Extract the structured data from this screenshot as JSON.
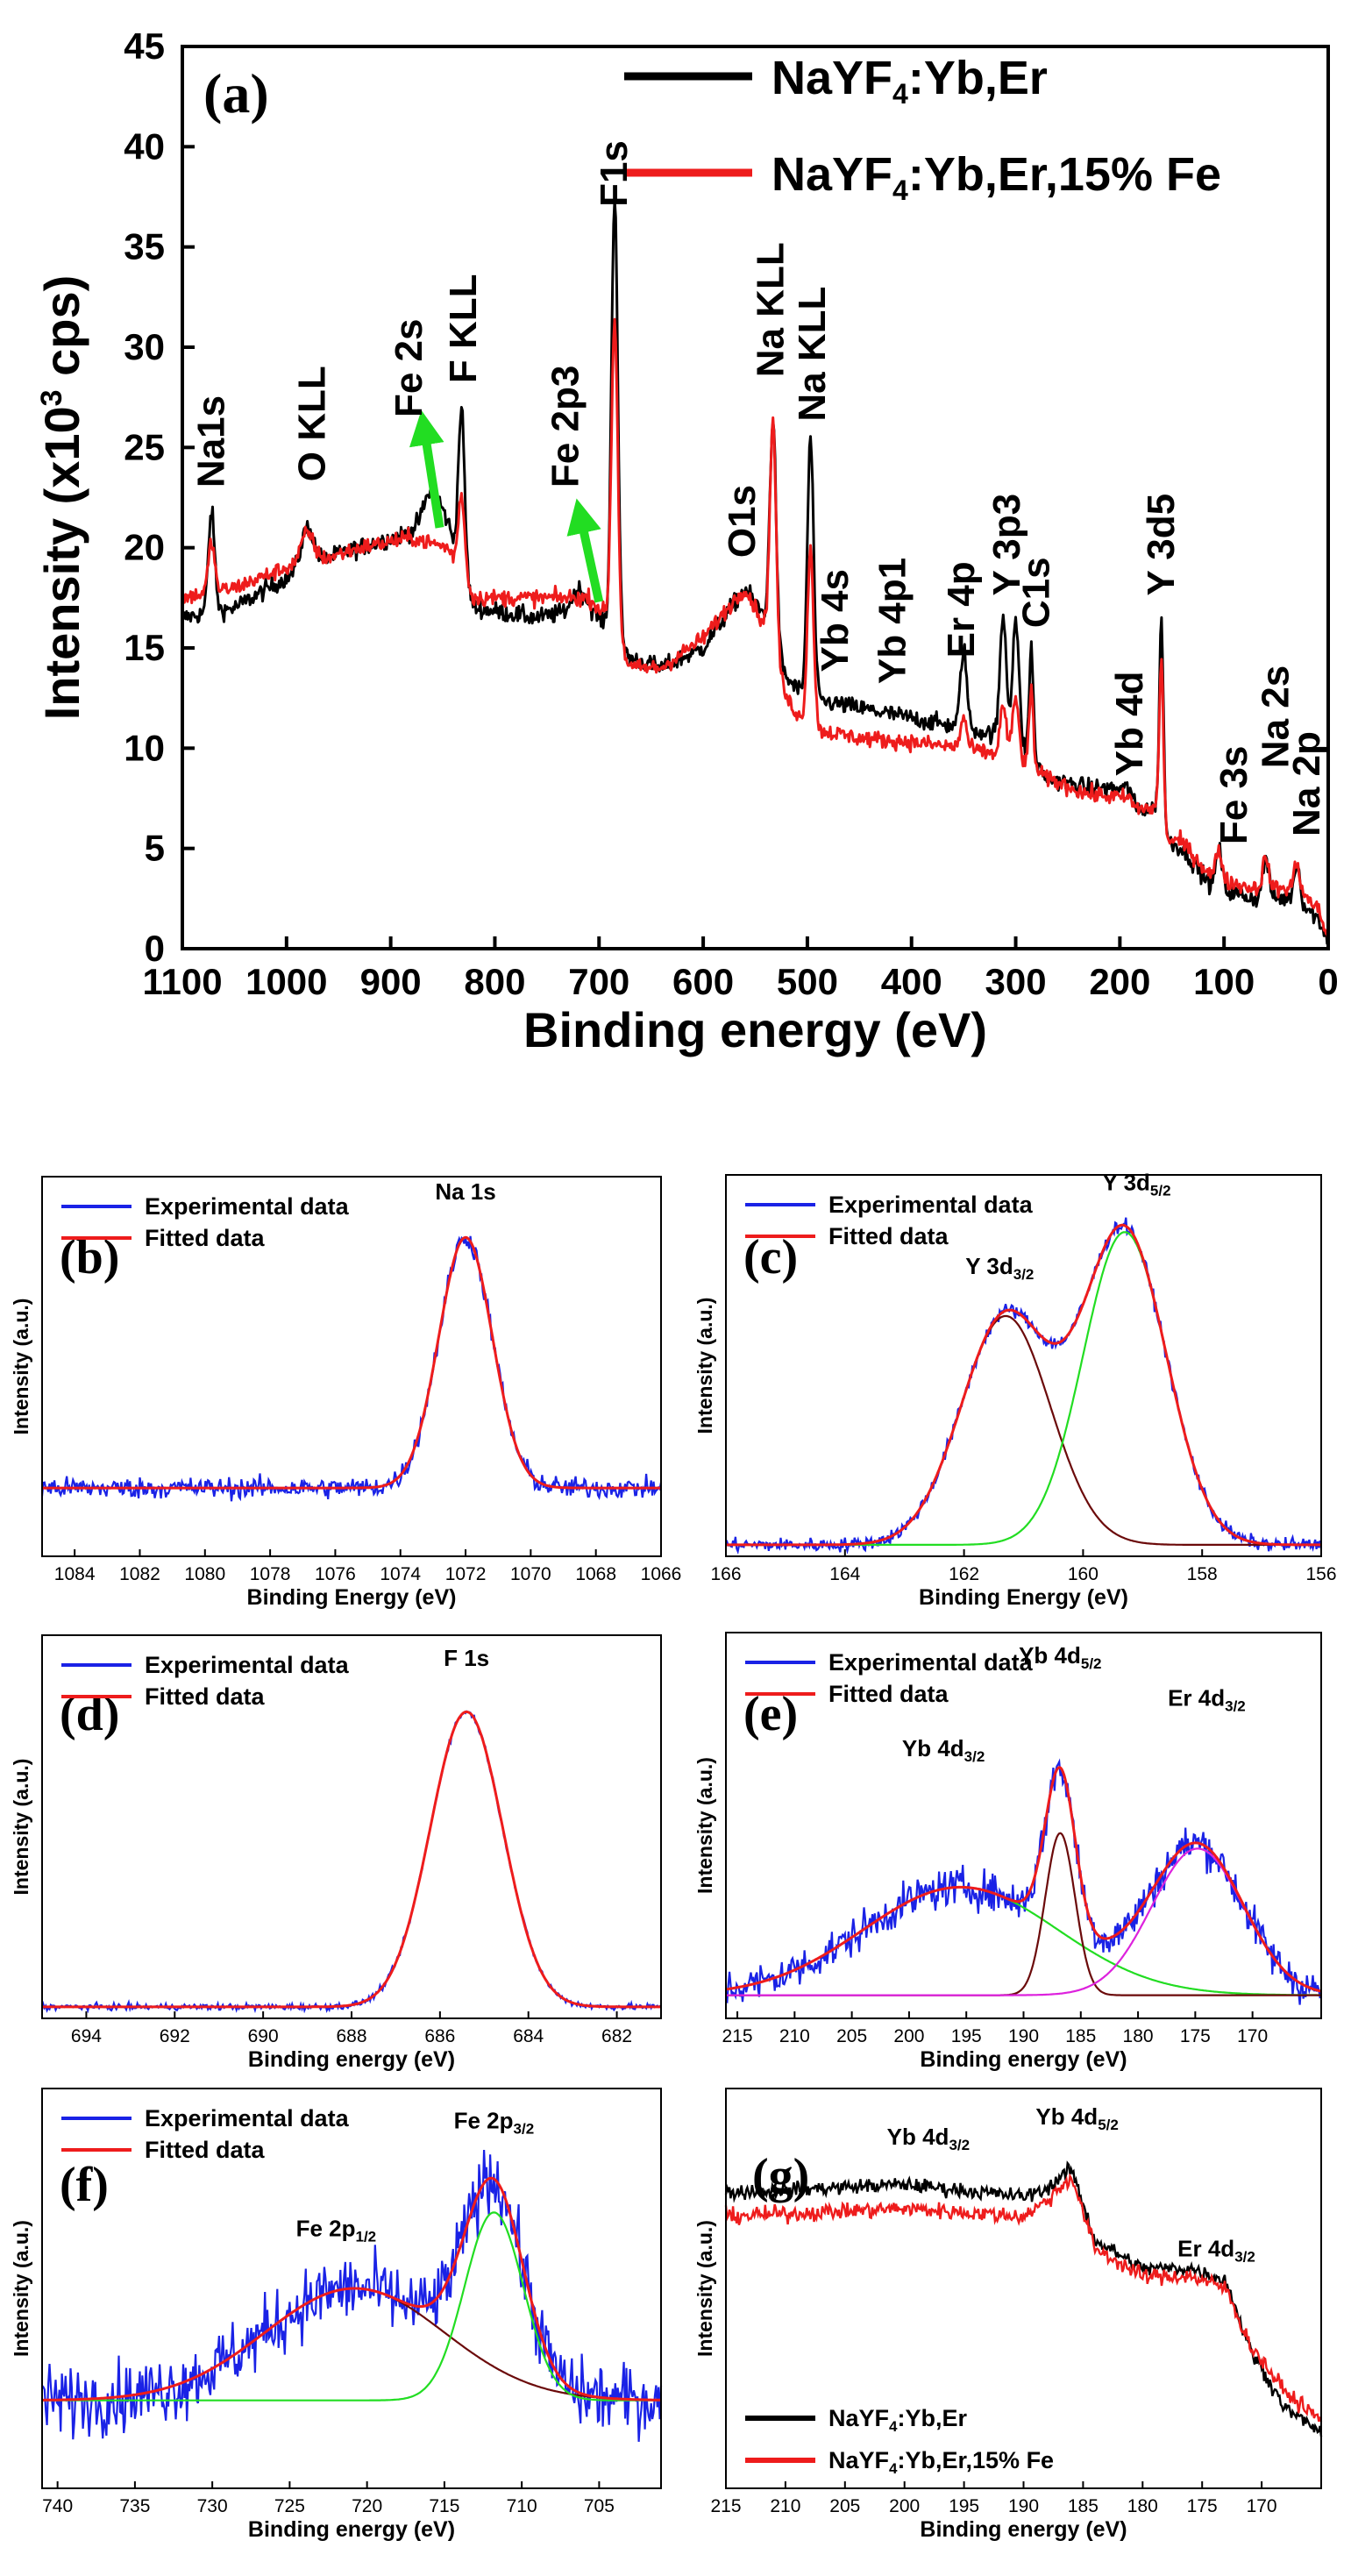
{
  "colors": {
    "black": "#000000",
    "red": "#ee1c1c",
    "blue": "#1a22e6",
    "green": "#22dd22",
    "brown": "#6b0a0a",
    "magenta": "#dd22dd",
    "arrow": "#22dd22"
  },
  "chart_data": [
    {
      "id": "a",
      "type": "line",
      "panel_label": "(a)",
      "xlabel": "Binding energy (eV)",
      "ylabel": "Intensity (x10³ cps)",
      "ylabel_main": "Intensity (x10",
      "ylabel_sup": "3",
      "ylabel_tail": " cps)",
      "xlim": [
        1100,
        0
      ],
      "ylim": [
        0,
        45
      ],
      "xticks": [
        1100,
        1000,
        900,
        800,
        700,
        600,
        500,
        400,
        300,
        200,
        100,
        0
      ],
      "yticks": [
        0,
        5,
        10,
        15,
        20,
        25,
        30,
        35,
        40,
        45
      ],
      "legend": {
        "position": "top-right",
        "entries": [
          {
            "color": "black",
            "pre": "NaYF",
            "sub": "4",
            "post": ":Yb,Er"
          },
          {
            "color": "red",
            "pre": "NaYF",
            "sub": "4",
            "post": ":Yb,Er,15% Fe"
          }
        ]
      },
      "series": [
        {
          "name": "NaYF4:Yb,Er",
          "color": "black",
          "background": [
            [
              1100,
              16.5
            ],
            [
              1050,
              17.0
            ],
            [
              1000,
              18.5
            ],
            [
              960,
              19.5
            ],
            [
              930,
              20.0
            ],
            [
              880,
              20.8
            ],
            [
              845,
              21.0
            ],
            [
              820,
              17.0
            ],
            [
              760,
              16.5
            ],
            [
              710,
              17.0
            ],
            [
              690,
              16.0
            ],
            [
              670,
              14.5
            ],
            [
              640,
              14.0
            ],
            [
              600,
              15.0
            ],
            [
              560,
              18.0
            ],
            [
              540,
              16.5
            ],
            [
              520,
              13.5
            ],
            [
              500,
              12.5
            ],
            [
              450,
              12.0
            ],
            [
              400,
              11.5
            ],
            [
              350,
              11.0
            ],
            [
              300,
              10.5
            ],
            [
              270,
              8.5
            ],
            [
              230,
              8.0
            ],
            [
              190,
              8.0
            ],
            [
              185,
              7.0
            ],
            [
              162,
              7.0
            ],
            [
              158,
              5.5
            ],
            [
              140,
              5.0
            ],
            [
              110,
              3.0
            ],
            [
              70,
              2.5
            ],
            [
              40,
              2.5
            ],
            [
              20,
              2.0
            ],
            [
              10,
              1.5
            ],
            [
              0,
              0.5
            ]
          ],
          "peaks": [
            [
              1072,
              5.0,
              3
            ],
            [
              980,
              2.0,
              6
            ],
            [
              860,
              2.0,
              8
            ],
            [
              832,
              8.0,
              3
            ],
            [
              720,
              1.0,
              6
            ],
            [
              685,
              22.0,
              3
            ],
            [
              533,
              11.0,
              3
            ],
            [
              497,
              13.0,
              3
            ],
            [
              350,
              4.0,
              3
            ],
            [
              312,
              6.0,
              3
            ],
            [
              300,
              6.0,
              3
            ],
            [
              285,
              5.5,
              2
            ],
            [
              160,
              10.0,
              2
            ],
            [
              105,
              2.0,
              3
            ],
            [
              60,
              2.0,
              3
            ],
            [
              30,
              2.0,
              3
            ]
          ],
          "noise": 0.45
        },
        {
          "name": "NaYF4:Yb,Er,15% Fe",
          "color": "red",
          "background": [
            [
              1100,
              17.5
            ],
            [
              1050,
              18.0
            ],
            [
              1000,
              19.0
            ],
            [
              960,
              19.5
            ],
            [
              930,
              20.0
            ],
            [
              880,
              20.5
            ],
            [
              845,
              20.0
            ],
            [
              820,
              17.5
            ],
            [
              760,
              17.5
            ],
            [
              710,
              17.5
            ],
            [
              690,
              16.5
            ],
            [
              670,
              14.0
            ],
            [
              640,
              14.0
            ],
            [
              600,
              15.5
            ],
            [
              560,
              18.0
            ],
            [
              540,
              16.0
            ],
            [
              520,
              12.5
            ],
            [
              500,
              11.0
            ],
            [
              450,
              10.5
            ],
            [
              400,
              10.3
            ],
            [
              350,
              10.0
            ],
            [
              300,
              9.5
            ],
            [
              270,
              8.5
            ],
            [
              230,
              7.7
            ],
            [
              190,
              7.5
            ],
            [
              185,
              7.0
            ],
            [
              162,
              7.0
            ],
            [
              158,
              5.5
            ],
            [
              140,
              5.3
            ],
            [
              110,
              3.5
            ],
            [
              70,
              3.0
            ],
            [
              40,
              3.0
            ],
            [
              20,
              2.5
            ],
            [
              10,
              2.0
            ],
            [
              0,
              0.5
            ]
          ],
          "peaks": [
            [
              1072,
              2.5,
              3
            ],
            [
              980,
              1.5,
              6
            ],
            [
              832,
              4.0,
              3
            ],
            [
              685,
              15.5,
              3
            ],
            [
              533,
              11.5,
              3
            ],
            [
              497,
              9.0,
              3
            ],
            [
              350,
              1.5,
              3
            ],
            [
              312,
              2.5,
              3
            ],
            [
              300,
              3.0,
              3
            ],
            [
              285,
              4.0,
              2
            ],
            [
              160,
              8.0,
              2
            ],
            [
              105,
              1.5,
              3
            ],
            [
              60,
              1.5,
              3
            ],
            [
              30,
              1.5,
              3
            ]
          ],
          "noise": 0.4
        }
      ],
      "annotations": [
        {
          "text": "Na1s",
          "x": 1072,
          "y": 23
        },
        {
          "text": "O KLL",
          "x": 975,
          "y": 23.3
        },
        {
          "text": "Fe 2s",
          "x": 882,
          "y": 26.5
        },
        {
          "text": "F KLL",
          "x": 830,
          "y": 28.2
        },
        {
          "text": "Fe 2p3",
          "x": 732,
          "y": 23
        },
        {
          "text": "F1s",
          "x": 685,
          "y": 37
        },
        {
          "text": "O1s",
          "x": 562,
          "y": 19.5
        },
        {
          "text": "Na KLL",
          "x": 535,
          "y": 28.5
        },
        {
          "text": "Na KLL",
          "x": 495,
          "y": 26.3
        },
        {
          "text": "Yb 4s",
          "x": 473,
          "y": 13.8
        },
        {
          "text": "Yb 4p1",
          "x": 418,
          "y": 13.2
        },
        {
          "text": "Er 4p",
          "x": 352,
          "y": 14.5
        },
        {
          "text": "Y 3p3",
          "x": 308,
          "y": 17.6
        },
        {
          "text": "C1s",
          "x": 280,
          "y": 16.0
        },
        {
          "text": "Yb 4d",
          "x": 190,
          "y": 8.6
        },
        {
          "text": "Y 3d5",
          "x": 160,
          "y": 17.6
        },
        {
          "text": "Fe 3s",
          "x": 90,
          "y": 5.2
        },
        {
          "text": "Na 2s",
          "x": 50,
          "y": 9.0
        },
        {
          "text": "Na 2p",
          "x": 20,
          "y": 5.6
        }
      ],
      "arrows": [
        {
          "from": [
            853,
            21
          ],
          "to": [
            868,
            26
          ]
        },
        {
          "from": [
            700,
            17.3
          ],
          "to": [
            718,
            21.6
          ]
        }
      ]
    },
    {
      "id": "b",
      "type": "line",
      "panel_label": "(b)",
      "xlabel": "Binding Energy (eV)",
      "ylabel": "Intensity (a.u.)",
      "xlim": [
        1085,
        1066
      ],
      "ylim": [
        0,
        1
      ],
      "xticks": [
        1084,
        1082,
        1080,
        1078,
        1076,
        1074,
        1072,
        1070,
        1068,
        1066
      ],
      "legend": {
        "position": "top-left",
        "entries": [
          {
            "color": "blue",
            "text": "Experimental data"
          },
          {
            "color": "red",
            "text": "Fitted data"
          }
        ]
      },
      "fit": {
        "baseline": 0.18,
        "components": [
          {
            "center": 1072.0,
            "height": 0.66,
            "sigma": 0.82
          }
        ]
      },
      "noise": 0.028,
      "annotations": [
        {
          "text": "Na 1s",
          "x": 1072,
          "y": 0.94
        }
      ]
    },
    {
      "id": "c",
      "type": "line",
      "panel_label": "(c)",
      "xlabel": "Binding Energy (eV)",
      "ylabel": "Intensity (a.u.)",
      "xlim": [
        166,
        156
      ],
      "ylim": [
        0,
        1
      ],
      "xticks": [
        166,
        164,
        162,
        160,
        158,
        156
      ],
      "legend": {
        "position": "top-left",
        "entries": [
          {
            "color": "blue",
            "text": "Experimental data"
          },
          {
            "color": "red",
            "text": "Fitted data"
          }
        ]
      },
      "fit": {
        "baseline": 0.03,
        "components": [
          {
            "center": 161.3,
            "height": 0.6,
            "sigma": 0.75,
            "color": "brown"
          },
          {
            "center": 159.3,
            "height": 0.82,
            "sigma": 0.7,
            "color": "green"
          }
        ]
      },
      "noise": 0.018,
      "annotations": [
        {
          "pre": "Y 3d",
          "sub": "3/2",
          "x": 161.4,
          "y": 0.74
        },
        {
          "pre": "Y 3d",
          "sub": "5/2",
          "x": 159.1,
          "y": 0.96
        }
      ]
    },
    {
      "id": "d",
      "type": "line",
      "panel_label": "(d)",
      "xlabel": "Binding energy (eV)",
      "ylabel": "Intensity (a.u.)",
      "xlim": [
        695,
        681
      ],
      "ylim": [
        0,
        1
      ],
      "xticks": [
        694,
        692,
        690,
        688,
        686,
        684,
        682
      ],
      "legend": {
        "position": "top-left",
        "entries": [
          {
            "color": "blue",
            "text": "Experimental data"
          },
          {
            "color": "red",
            "text": "Fitted data"
          }
        ]
      },
      "fit": {
        "baseline": 0.03,
        "components": [
          {
            "center": 685.4,
            "height": 0.77,
            "sigma": 0.82
          }
        ]
      },
      "noise": 0.008,
      "annotations": [
        {
          "text": "F 1s",
          "x": 685.4,
          "y": 0.92
        }
      ]
    },
    {
      "id": "e",
      "type": "line",
      "panel_label": "(e)",
      "xlabel": "Binding energy (eV)",
      "ylabel": "Intensity (a.u.)",
      "xlim": [
        216,
        164
      ],
      "ylim": [
        0,
        1
      ],
      "xticks": [
        215,
        210,
        205,
        200,
        195,
        190,
        185,
        180,
        175,
        170
      ],
      "legend": {
        "position": "top-left",
        "entries": [
          {
            "color": "blue",
            "text": "Experimental data"
          },
          {
            "color": "red",
            "text": "Fitted data"
          }
        ]
      },
      "fit": {
        "baseline": 0.06,
        "components": [
          {
            "center": 195.5,
            "height": 0.28,
            "sigma": 8.5,
            "color": "green"
          },
          {
            "center": 186.8,
            "height": 0.42,
            "sigma": 1.3,
            "color": "brown"
          },
          {
            "center": 174.8,
            "height": 0.38,
            "sigma": 4.0,
            "color": "magenta"
          }
        ]
      },
      "noise": 0.05,
      "annotations": [
        {
          "pre": "Yb 4d",
          "sub": "3/2",
          "x": 197,
          "y": 0.68
        },
        {
          "pre": "Yb 4d",
          "sub": "5/2",
          "x": 186.8,
          "y": 0.92
        },
        {
          "pre": "Er 4d",
          "sub": "3/2",
          "x": 174,
          "y": 0.81
        }
      ]
    },
    {
      "id": "f",
      "type": "line",
      "panel_label": "(f)",
      "xlabel": "Binding energy (eV)",
      "ylabel": "Intensity (a.u.)",
      "xlim": [
        741,
        701
      ],
      "ylim": [
        0,
        1
      ],
      "xticks": [
        740,
        735,
        730,
        725,
        720,
        715,
        710,
        705
      ],
      "legend": {
        "position": "top-left",
        "entries": [
          {
            "color": "blue",
            "text": "Experimental data"
          },
          {
            "color": "red",
            "text": "Fitted data"
          }
        ]
      },
      "fit": {
        "baseline": 0.22,
        "components": [
          {
            "center": 720.8,
            "height": 0.28,
            "sigma": 5.8,
            "color": "brown"
          },
          {
            "center": 711.8,
            "height": 0.47,
            "sigma": 1.9,
            "color": "green"
          }
        ]
      },
      "noise": 0.085,
      "annotations": [
        {
          "pre": "Fe 2p",
          "sub": "1/2",
          "x": 722,
          "y": 0.63
        },
        {
          "pre": "Fe 2p",
          "sub": "3/2",
          "x": 711.8,
          "y": 0.9
        }
      ]
    },
    {
      "id": "g",
      "type": "line",
      "panel_label": "(g)",
      "xlabel": "Binding energy (eV)",
      "ylabel": "Intensity (a.u.)",
      "xlim": [
        215,
        165
      ],
      "ylim": [
        0,
        1
      ],
      "xticks": [
        215,
        210,
        205,
        200,
        195,
        190,
        185,
        180,
        175,
        170
      ],
      "legend": {
        "position": "bottom-left",
        "entries": [
          {
            "color": "black",
            "pre": "NaYF",
            "sub": "4",
            "post": ":Yb,Er"
          },
          {
            "color": "red",
            "pre": "NaYF",
            "sub": "4",
            "post": ":Yb,Er,15% Fe"
          }
        ]
      },
      "series": [
        {
          "name": "NaYF4:Yb,Er",
          "color": "black",
          "background": [
            [
              215,
              0.74
            ],
            [
              200,
              0.76
            ],
            [
              190,
              0.73
            ],
            [
              188,
              0.75
            ],
            [
              186,
              0.8
            ],
            [
              184,
              0.62
            ],
            [
              180,
              0.55
            ],
            [
              176,
              0.55
            ],
            [
              173,
              0.52
            ],
            [
              171,
              0.35
            ],
            [
              168,
              0.2
            ],
            [
              165,
              0.14
            ]
          ],
          "noise": 0.018
        },
        {
          "name": "NaYF4:Yb,Er,15% Fe",
          "color": "red",
          "background": [
            [
              215,
              0.68
            ],
            [
              200,
              0.7
            ],
            [
              190,
              0.68
            ],
            [
              188,
              0.72
            ],
            [
              186,
              0.78
            ],
            [
              184,
              0.6
            ],
            [
              180,
              0.53
            ],
            [
              176,
              0.53
            ],
            [
              173,
              0.5
            ],
            [
              171,
              0.36
            ],
            [
              168,
              0.24
            ],
            [
              165,
              0.17
            ]
          ],
          "noise": 0.02
        }
      ],
      "annotations": [
        {
          "pre": "Yb 4d",
          "sub": "3/2",
          "x": 198,
          "y": 0.86
        },
        {
          "pre": "Yb 4d",
          "sub": "5/2",
          "x": 185.5,
          "y": 0.91
        },
        {
          "pre": "Er 4d",
          "sub": "3/2",
          "x": 173.8,
          "y": 0.58
        }
      ]
    }
  ]
}
